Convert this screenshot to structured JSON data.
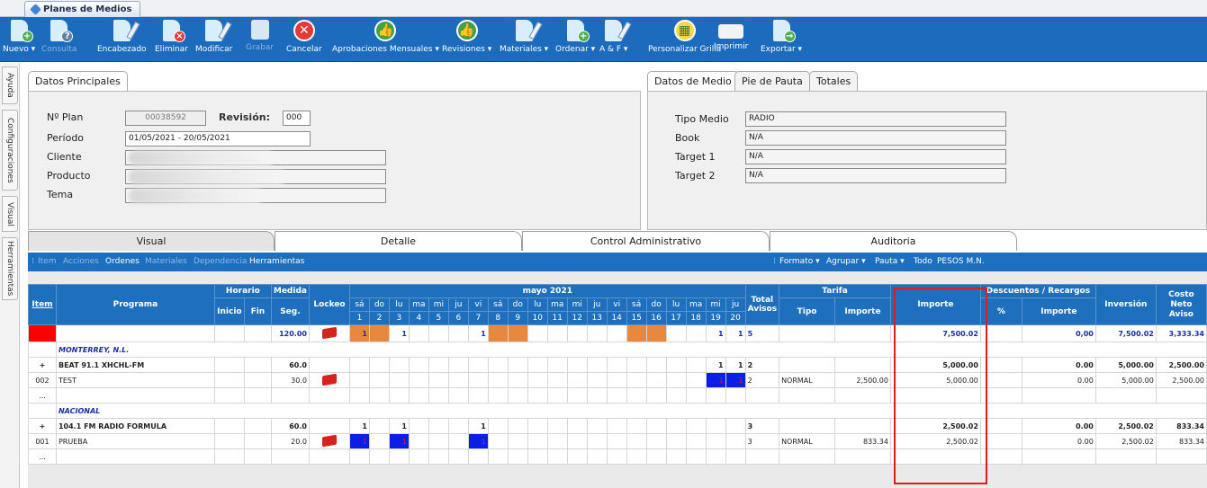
{
  "window_tab": "Planes de Medios",
  "toolbar": [
    {
      "name": "nuevo-button",
      "label": "Nuevo ▾",
      "icon": "doc-add-icon"
    },
    {
      "name": "consulta-button",
      "label": "Consulta",
      "icon": "doc-help-icon",
      "disabled": true
    },
    {
      "name": "encabezado-button",
      "label": "Encabezado",
      "icon": "doc-edit-icon"
    },
    {
      "name": "eliminar-button",
      "label": "Eliminar",
      "icon": "doc-delete-icon"
    },
    {
      "name": "modificar-button",
      "label": "Modificar",
      "icon": "doc-edit-icon"
    },
    {
      "name": "grabar-button",
      "label": "Grabar",
      "icon": "save-disk-icon",
      "disabled": true
    },
    {
      "name": "cancelar-button",
      "label": "Cancelar",
      "icon": "cancel-icon"
    },
    {
      "name": "aprobaciones-button",
      "label": "Aprobaciones Mensuales ▾",
      "icon": "thumbs-up-icon"
    },
    {
      "name": "revisiones-button",
      "label": "Revisiones ▾",
      "icon": "thumbs-up-icon"
    },
    {
      "name": "materiales-button",
      "label": "Materiales ▾",
      "icon": "doc-edit-icon"
    },
    {
      "name": "ordenar-button",
      "label": "Ordenar ▾",
      "icon": "doc-add-icon"
    },
    {
      "name": "ayf-button",
      "label": "A & F ▾",
      "icon": "doc-edit-icon"
    },
    {
      "name": "personalizar-grilla-button",
      "label": "Personalizar Grilla",
      "icon": "grid-icon"
    },
    {
      "name": "imprimir-button",
      "label": "Imprimir",
      "icon": "printer-icon"
    },
    {
      "name": "exportar-button",
      "label": "Exportar ▾",
      "icon": "export-icon"
    }
  ],
  "sidebar_tabs": [
    "Ayuda",
    "Configuraciones",
    "Visual",
    "Herramientas"
  ],
  "datos_principales": {
    "tab_label": "Datos Principales",
    "nplan_label": "Nº Plan",
    "nplan_value": "00038592",
    "revision_label": "Revisión:",
    "revision_value": "000",
    "periodo_label": "Período",
    "periodo_value": "01/05/2021 - 20/05/2021",
    "cliente_label": "Cliente",
    "producto_label": "Producto",
    "tema_label": "Tema"
  },
  "datos_medio": {
    "tabs": [
      "Datos de Medio",
      "Pie de Pauta",
      "Totales"
    ],
    "tipo_medio_label": "Tipo Medio",
    "tipo_medio_value": "RADIO",
    "book_label": "Book",
    "book_value": "N/A",
    "target1_label": "Target 1",
    "target1_value": "N/A",
    "target2_label": "Target 2",
    "target2_value": "N/A"
  },
  "bottom_tabs": [
    "Visual",
    "Detalle",
    "Control Administrativo",
    "Auditoria"
  ],
  "subbar_left": [
    "Item",
    "Acciones",
    "Ordenes",
    "Materiales",
    "Dependencia",
    "Herramientas"
  ],
  "subbar_right": [
    "Formato ▾",
    "Agrupar ▾",
    "Pauta ▾",
    "Todo",
    "PESOS M.N."
  ],
  "grid": {
    "headers": {
      "item": "Item",
      "programa": "Programa",
      "horario": "Horario",
      "inicio": "Inicio",
      "fin": "Fin",
      "medida": "Medida",
      "seg": "Seg.",
      "lockeo": "Lockeo",
      "month": "mayo 2021",
      "total_avisos": "Total Avisos",
      "tarifa": "Tarifa",
      "tipo": "Tipo",
      "tarifa_importe": "Importe",
      "importe": "Importe",
      "desc": "Descuentos / Recargos",
      "pct": "%",
      "desc_importe": "Importe",
      "inversion": "Inversión",
      "costo_neto": "Costo Neto Aviso"
    },
    "day_names": [
      "sá",
      "do",
      "lu",
      "ma",
      "mi",
      "ju",
      "vi",
      "sá",
      "do",
      "lu",
      "ma",
      "mi",
      "ju",
      "vi",
      "sá",
      "do",
      "lu",
      "ma",
      "mi",
      "ju"
    ],
    "day_numbers": [
      "1",
      "2",
      "3",
      "4",
      "5",
      "6",
      "7",
      "8",
      "9",
      "10",
      "11",
      "12",
      "13",
      "14",
      "15",
      "16",
      "17",
      "18",
      "19",
      "20"
    ],
    "rows": [
      {
        "type": "summary",
        "item_color": "#ff0000",
        "seg": "120.00",
        "flag": true,
        "days": {
          "0": "1",
          "2": "1",
          "6": "1",
          "18": "1",
          "19": "1"
        },
        "day_colors": {
          "0": "#e8883f",
          "1": "#e8883f",
          "7": "#e8883f",
          "8": "#e8883f",
          "14": "#e8883f",
          "15": "#e8883f"
        },
        "total": "5",
        "tipo": "",
        "tarifa": "",
        "importe": "7,500.02",
        "pct": "",
        "desc": "0,00",
        "inversion": "7,500.02",
        "costo": "3,333.34"
      },
      {
        "type": "group",
        "programa": "MONTERREY, N.L."
      },
      {
        "type": "agg",
        "item": "+",
        "programa": "BEAT 91.1 XHCHL-FM",
        "seg": "60.0",
        "days": {
          "18": "1",
          "19": "1"
        },
        "total": "2",
        "importe": "5,000.00",
        "desc": "0.00",
        "inversion": "5,000.00",
        "costo": "2,500.00"
      },
      {
        "type": "detail",
        "item": "002",
        "programa": "TEST",
        "seg": "30.0",
        "flag": true,
        "days": {
          "18": "1",
          "19": "1"
        },
        "day_colors": {
          "18": "#0a1ee6",
          "19": "#0a1ee6"
        },
        "total": "2",
        "tipo": "NORMAL",
        "tarifa": "2,500.00",
        "importe": "5,000.00",
        "desc": "0.00",
        "inversion": "5,000.00",
        "costo": "2,500.00"
      },
      {
        "type": "ellipsis",
        "item": "..."
      },
      {
        "type": "group",
        "programa": "NACIONAL"
      },
      {
        "type": "agg",
        "item": "+",
        "programa": "104.1 FM RADIO FORMULA",
        "seg": "60.0",
        "days": {
          "0": "1",
          "2": "1",
          "6": "1"
        },
        "total": "3",
        "importe": "2,500.02",
        "desc": "0.00",
        "inversion": "2,500.02",
        "costo": "833.34"
      },
      {
        "type": "detail",
        "item": "001",
        "programa": "PRUEBA",
        "seg": "20.0",
        "flag": true,
        "days": {
          "0": "1",
          "2": "1",
          "6": "1"
        },
        "day_colors": {
          "0": "#0a1ee6",
          "2": "#0a1ee6",
          "6": "#0a1ee6"
        },
        "total": "3",
        "tipo": "NORMAL",
        "tarifa": "833.34",
        "importe": "2,500.02",
        "desc": "0.00",
        "inversion": "2,500.02",
        "costo": "833.34"
      },
      {
        "type": "ellipsis",
        "item": "..."
      }
    ]
  },
  "colors": {
    "accent": "#1c6bbd",
    "highlight_box": "#e01c1c",
    "weekend": "#e8883f",
    "scheduled": "#0a1ee6"
  }
}
